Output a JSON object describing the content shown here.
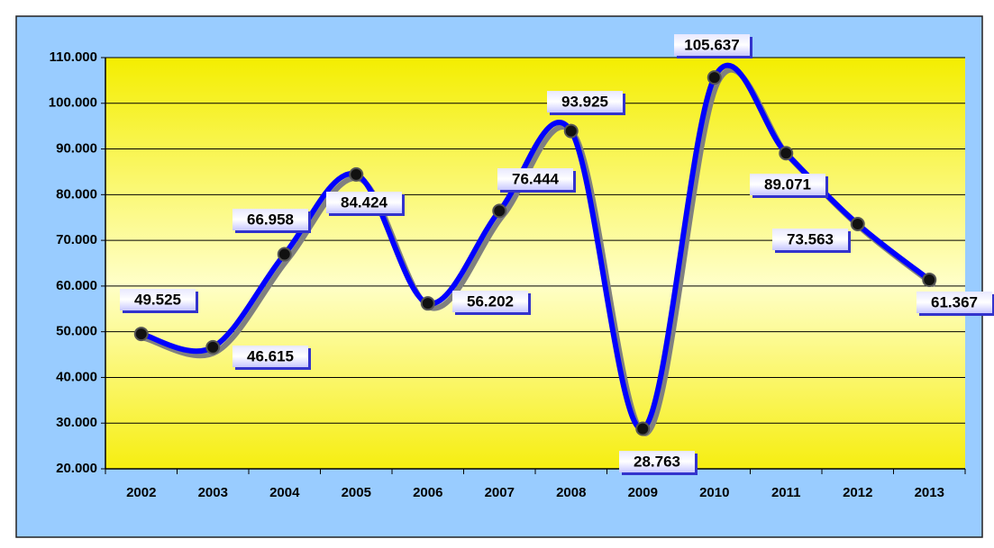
{
  "chart_data": {
    "type": "line",
    "categories": [
      "2002",
      "2003",
      "2004",
      "2005",
      "2006",
      "2007",
      "2008",
      "2009",
      "2010",
      "2011",
      "2012",
      "2013"
    ],
    "series": [
      {
        "color": "#0000ff",
        "values": [
          49525,
          46615,
          66958,
          84424,
          56202,
          76444,
          93925,
          28763,
          105637,
          89071,
          73563,
          61367
        ],
        "value_labels": [
          "49.525",
          "46.615",
          "66.958",
          "84.424",
          "56.202",
          "76.444",
          "93.925",
          "28.763",
          "105.637",
          "89.071",
          "73.563",
          "61.367"
        ]
      }
    ],
    "ylim": [
      20000,
      110000
    ],
    "yticks": [
      {
        "value": 20000,
        "label": "20.000"
      },
      {
        "value": 30000,
        "label": "30.000"
      },
      {
        "value": 40000,
        "label": "40.000"
      },
      {
        "value": 50000,
        "label": "50.000"
      },
      {
        "value": 60000,
        "label": "60.000"
      },
      {
        "value": 70000,
        "label": "70.000"
      },
      {
        "value": 80000,
        "label": "80.000"
      },
      {
        "value": 90000,
        "label": "90.000"
      },
      {
        "value": 100000,
        "label": "100.000"
      },
      {
        "value": 110000,
        "label": "110.000"
      }
    ],
    "grid": true
  }
}
